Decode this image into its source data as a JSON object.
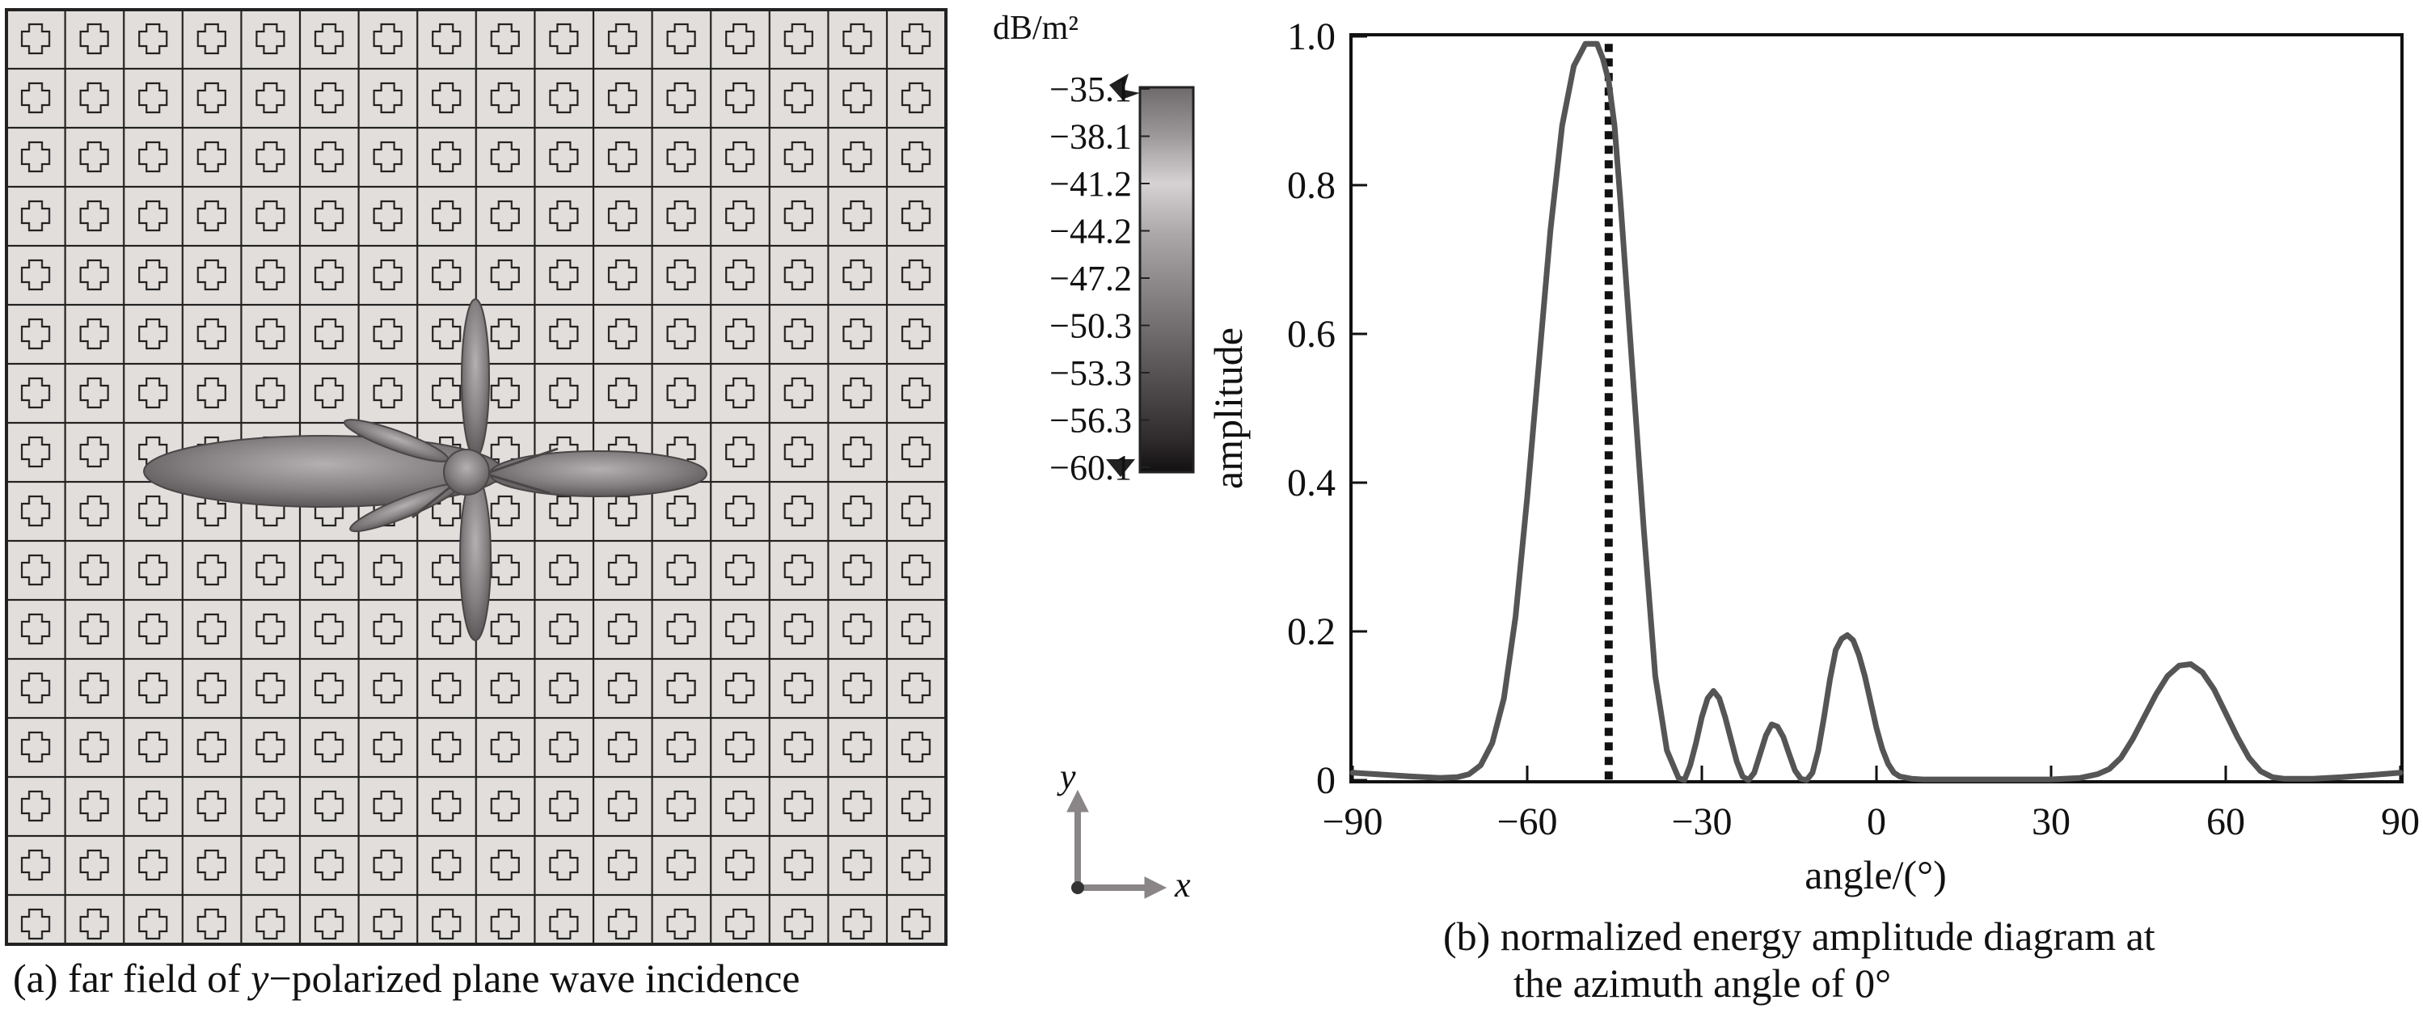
{
  "panel_a": {
    "caption": {
      "prefix": "(a) far field of ",
      "italic": "y",
      "suffix": "−polarized plane wave incidence"
    },
    "colorbar": {
      "unit": "dB/m²",
      "ticks": [
        "−35.1",
        "−38.1",
        "−41.2",
        "−44.2",
        "−47.2",
        "−50.3",
        "−53.3",
        "−56.3",
        "−60.1"
      ]
    },
    "axes_indicator": {
      "y_label": "y",
      "x_label": "x"
    }
  },
  "panel_b": {
    "caption_line1": "(b) normalized energy amplitude diagram at",
    "caption_line2": "the azimuth angle of 0°"
  },
  "chart_data": {
    "type": "line",
    "title": "",
    "xlabel": "angle/(°)",
    "ylabel": "amplitude",
    "xlim": [
      -90,
      90
    ],
    "ylim": [
      0,
      1.0
    ],
    "x_ticks": [
      -90,
      -60,
      -30,
      0,
      30,
      60,
      90
    ],
    "x_tick_labels": [
      "−90",
      "−60",
      "−30",
      "0",
      "30",
      "60",
      "90"
    ],
    "y_ticks": [
      0,
      0.2,
      0.4,
      0.6,
      0.8,
      1.0
    ],
    "y_tick_labels": [
      "0",
      "0.2",
      "0.4",
      "0.6",
      "0.8",
      "1.0"
    ],
    "grid": false,
    "series": [
      {
        "x": [
          -90,
          -80,
          -75,
          -72,
          -70,
          -68,
          -66,
          -64,
          -62,
          -60,
          -58,
          -56,
          -54,
          -52,
          -50,
          -48,
          -47,
          -46,
          -45,
          -44,
          -42,
          -40,
          -38,
          -36,
          -34,
          -33,
          -32,
          -31,
          -30,
          -29,
          -28,
          -27,
          -26,
          -25,
          -24,
          -23,
          -22,
          -21,
          -20,
          -19,
          -18,
          -17,
          -16,
          -15,
          -14,
          -13,
          -12,
          -11,
          -10,
          -9,
          -8,
          -7,
          -6,
          -5,
          -4,
          -3,
          -2,
          -1,
          0,
          1,
          2,
          3,
          4,
          6,
          8,
          10,
          15,
          20,
          25,
          30,
          35,
          38,
          40,
          42,
          44,
          46,
          48,
          50,
          52,
          54,
          56,
          58,
          60,
          62,
          64,
          66,
          68,
          70,
          75,
          80,
          85,
          90
        ],
        "y": [
          0.01,
          0.005,
          0.003,
          0.004,
          0.008,
          0.02,
          0.05,
          0.11,
          0.22,
          0.38,
          0.56,
          0.74,
          0.88,
          0.96,
          0.99,
          0.99,
          0.97,
          0.94,
          0.88,
          0.78,
          0.56,
          0.34,
          0.14,
          0.04,
          0.003,
          0.0,
          0.02,
          0.05,
          0.085,
          0.11,
          0.12,
          0.11,
          0.085,
          0.055,
          0.025,
          0.005,
          0.0,
          0.01,
          0.035,
          0.06,
          0.075,
          0.072,
          0.058,
          0.035,
          0.013,
          0.002,
          0.0,
          0.01,
          0.04,
          0.085,
          0.135,
          0.175,
          0.19,
          0.195,
          0.188,
          0.168,
          0.14,
          0.105,
          0.07,
          0.042,
          0.022,
          0.01,
          0.005,
          0.002,
          0.001,
          0.001,
          0.001,
          0.001,
          0.001,
          0.001,
          0.003,
          0.008,
          0.015,
          0.03,
          0.055,
          0.085,
          0.115,
          0.14,
          0.154,
          0.156,
          0.145,
          0.122,
          0.09,
          0.058,
          0.03,
          0.012,
          0.004,
          0.002,
          0.002,
          0.004,
          0.007,
          0.01
        ]
      }
    ],
    "annotations": [
      {
        "type": "vertical-dotted-line",
        "x": -46
      }
    ],
    "colors": {
      "line": "#555555",
      "marker_line": "#111111"
    }
  }
}
